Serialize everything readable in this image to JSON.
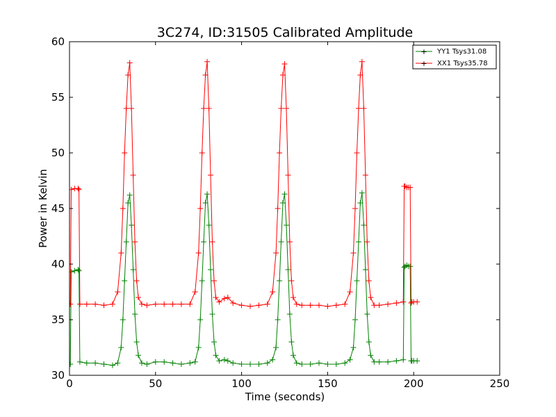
{
  "chart_data": {
    "type": "line",
    "title": "3C274, ID:31505 Calibrated Amplitude",
    "xlabel": "Time (seconds)",
    "ylabel": "Power in Kelvin",
    "xlim": [
      0,
      250
    ],
    "ylim": [
      30,
      60
    ],
    "xticks": [
      "0",
      "50",
      "100",
      "150",
      "200",
      "250"
    ],
    "yticks": [
      "30",
      "35",
      "40",
      "45",
      "50",
      "55",
      "60"
    ],
    "grid": false,
    "legend_position": "top-right",
    "marker": "+",
    "series": [
      {
        "name": "YY1 Tsys31.08",
        "color": "#008000",
        "x": [
          0.5,
          1,
          3,
          5,
          5.5,
          6,
          10,
          15,
          20,
          25,
          28,
          30,
          31,
          32,
          33,
          34,
          35,
          36,
          37,
          38,
          39,
          40,
          42,
          45,
          50,
          55,
          60,
          65,
          70,
          73,
          75,
          76,
          77,
          78,
          79,
          80,
          81,
          82,
          83,
          84,
          85,
          87,
          90,
          92,
          95,
          100,
          105,
          110,
          115,
          118,
          120,
          121,
          122,
          123,
          124,
          125,
          126,
          127,
          128,
          129,
          130,
          132,
          135,
          140,
          145,
          150,
          155,
          160,
          163,
          165,
          166,
          167,
          168,
          169,
          170,
          171,
          172,
          173,
          174,
          175,
          177,
          180,
          185,
          190,
          194,
          194.5,
          195,
          196,
          197,
          198,
          198.5,
          199,
          200,
          202
        ],
        "y": [
          31,
          39.3,
          39.4,
          39.5,
          39.4,
          31.2,
          31.1,
          31.1,
          31.0,
          30.9,
          31.1,
          32.5,
          35.0,
          38.5,
          42.0,
          45.5,
          46.2,
          43.5,
          39.5,
          35.5,
          33.0,
          31.8,
          31.1,
          31.0,
          31.2,
          31.2,
          31.1,
          31.0,
          31.1,
          31.2,
          32.5,
          35.0,
          38.5,
          42.0,
          45.5,
          46.3,
          43.5,
          39.5,
          35.5,
          33.0,
          31.8,
          31.3,
          31.4,
          31.3,
          31.1,
          31.0,
          31.0,
          31.0,
          31.1,
          31.4,
          32.5,
          35.0,
          38.5,
          42.0,
          45.5,
          46.3,
          43.5,
          39.5,
          35.5,
          33.0,
          31.8,
          31.1,
          31.0,
          31.0,
          31.1,
          31.0,
          31.0,
          31.1,
          31.4,
          32.5,
          35.0,
          38.5,
          42.0,
          45.5,
          46.4,
          43.5,
          39.5,
          35.5,
          33.0,
          31.8,
          31.2,
          31.2,
          31.2,
          31.3,
          31.4,
          39.7,
          39.8,
          39.9,
          39.8,
          39.8,
          31.3,
          31.3,
          31.3,
          31.3
        ]
      },
      {
        "name": "XX1 Tsys35.78",
        "color": "#ff0000",
        "x": [
          0.5,
          1,
          3,
          5,
          5.5,
          6,
          10,
          15,
          20,
          25,
          28,
          30,
          31,
          32,
          33,
          34,
          35,
          36,
          37,
          38,
          39,
          40,
          42,
          45,
          50,
          55,
          60,
          65,
          70,
          73,
          75,
          76,
          77,
          78,
          79,
          80,
          81,
          82,
          83,
          84,
          85,
          87,
          90,
          92,
          95,
          100,
          105,
          110,
          115,
          118,
          120,
          121,
          122,
          123,
          124,
          125,
          126,
          127,
          128,
          129,
          130,
          132,
          135,
          140,
          145,
          150,
          155,
          160,
          163,
          165,
          166,
          167,
          168,
          169,
          170,
          171,
          172,
          173,
          174,
          175,
          177,
          180,
          185,
          190,
          194,
          194.5,
          195,
          196,
          197,
          198,
          198.5,
          199,
          200,
          202
        ],
        "y": [
          36.4,
          46.7,
          46.8,
          46.8,
          46.7,
          36.4,
          36.4,
          36.4,
          36.3,
          36.4,
          37.5,
          41.0,
          45.0,
          50.0,
          54.0,
          57.0,
          58.1,
          54.0,
          48.0,
          42.0,
          38.5,
          37.0,
          36.4,
          36.3,
          36.4,
          36.4,
          36.4,
          36.4,
          36.4,
          37.5,
          41.0,
          45.0,
          50.0,
          54.0,
          57.0,
          58.2,
          54.0,
          48.0,
          42.0,
          38.5,
          37.0,
          36.6,
          36.9,
          37.0,
          36.5,
          36.3,
          36.2,
          36.3,
          36.4,
          37.5,
          41.0,
          45.0,
          50.0,
          54.0,
          57.0,
          58.0,
          54.0,
          48.0,
          42.0,
          38.5,
          37.0,
          36.4,
          36.3,
          36.3,
          36.3,
          36.2,
          36.3,
          36.4,
          37.5,
          41.0,
          45.0,
          50.0,
          54.0,
          57.0,
          58.2,
          54.0,
          48.0,
          42.0,
          38.5,
          37.0,
          36.3,
          36.3,
          36.4,
          36.5,
          36.6,
          47.0,
          47.0,
          46.9,
          46.9,
          46.9,
          36.5,
          36.6,
          36.6,
          36.6
        ]
      }
    ]
  }
}
